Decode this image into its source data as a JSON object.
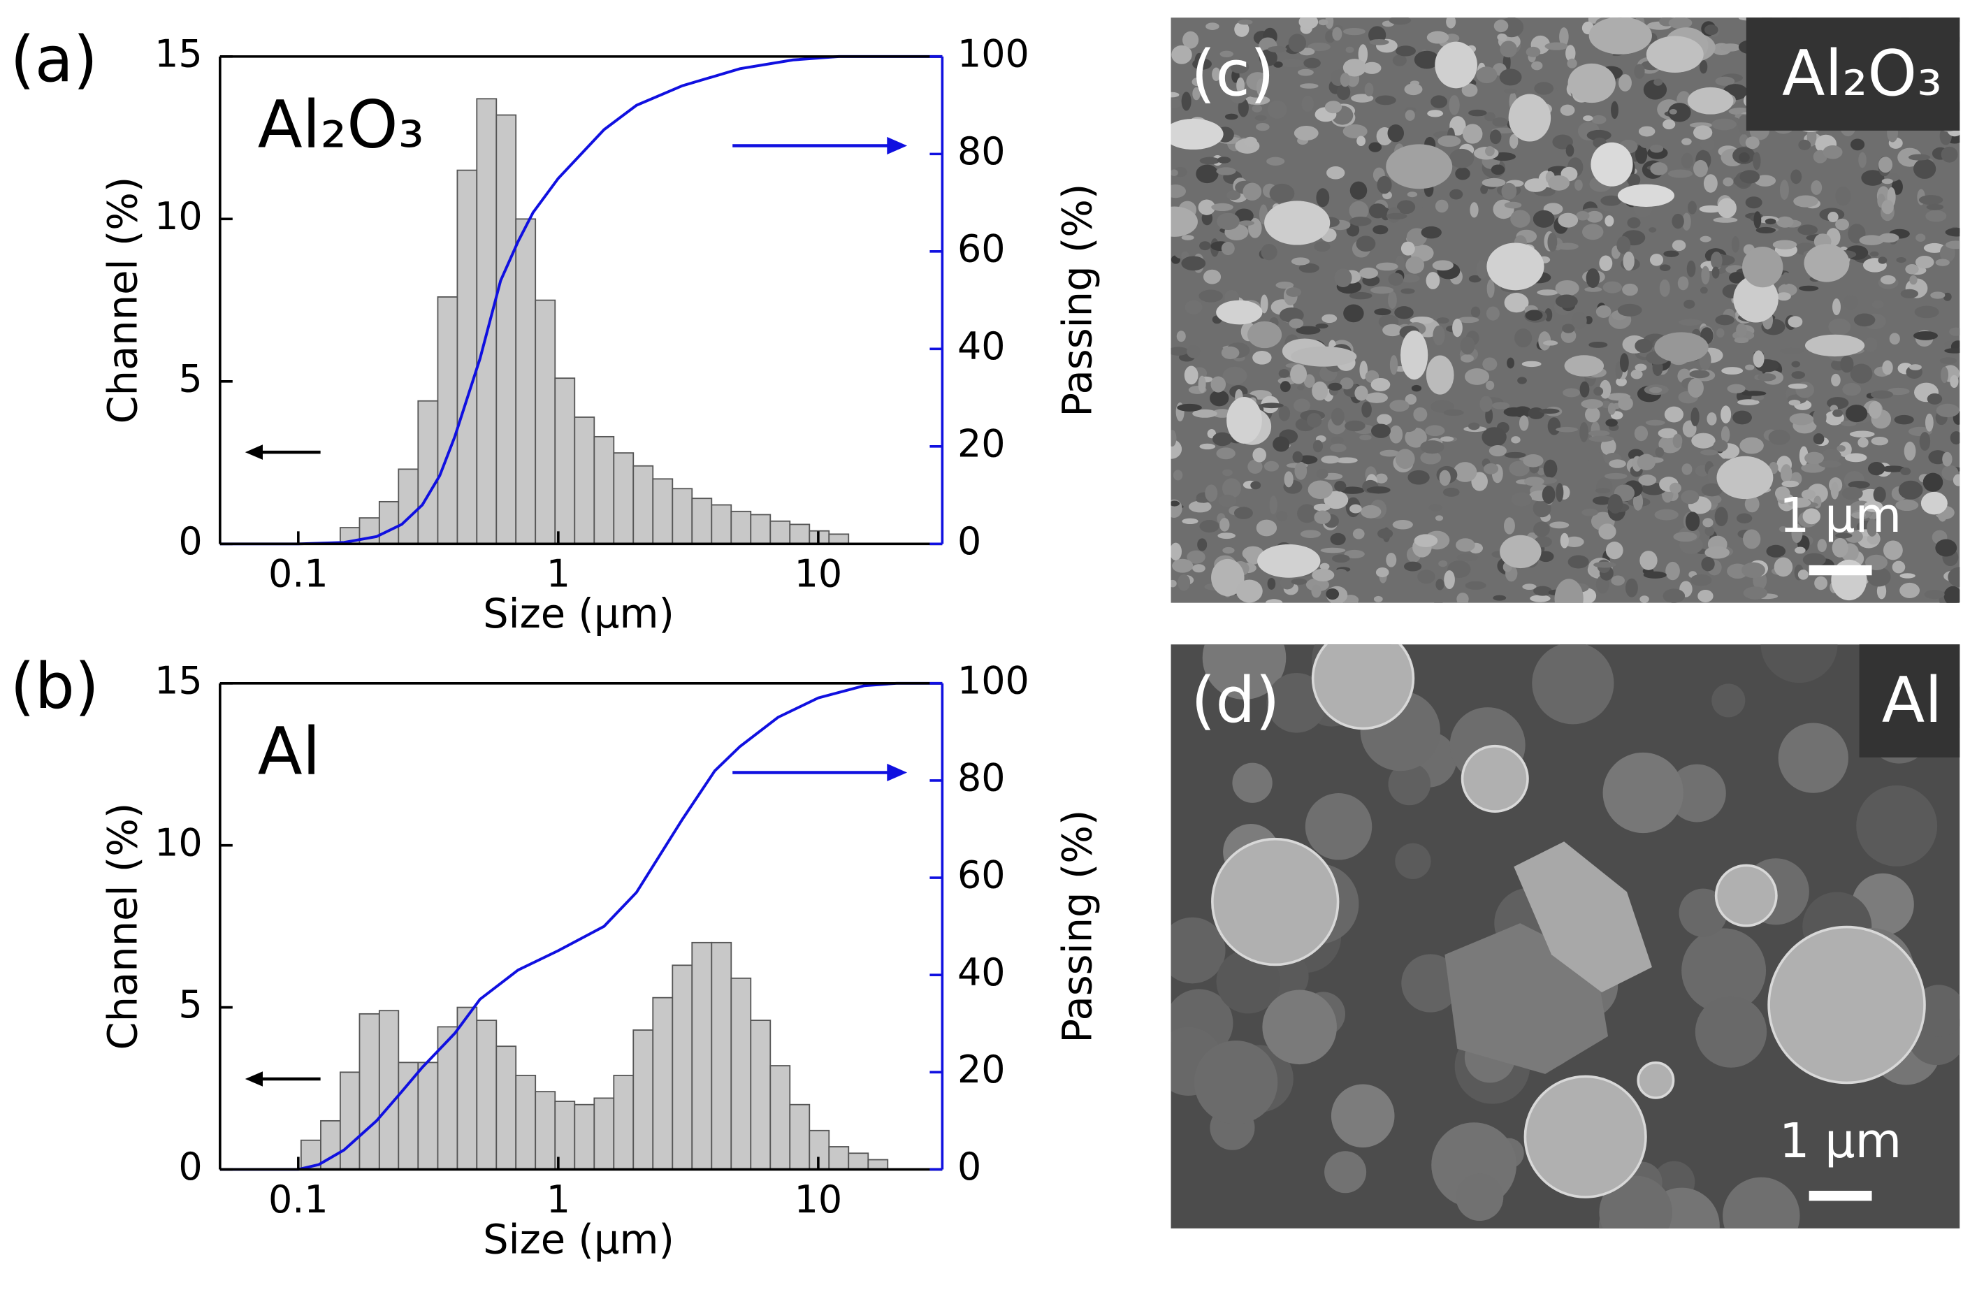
{
  "chart_data": [
    {
      "type": "histogram",
      "panel_label": "(a)",
      "annotation": "Al₂O₃",
      "xlabel": "Size (μm)",
      "ylabel": "Channel (%)",
      "y2label": "Passing (%)",
      "log_x": true,
      "xlim": [
        0.05,
        30
      ],
      "xticks": [
        0.1,
        1,
        10
      ],
      "ylim": [
        0,
        15
      ],
      "yticks": [
        0,
        5,
        10,
        15
      ],
      "y2lim": [
        0,
        100
      ],
      "y2ticks": [
        0,
        20,
        40,
        60,
        80,
        100
      ],
      "color": "#c8c8c8",
      "bins": [
        0.145,
        0.172,
        0.205,
        0.243,
        0.289,
        0.344,
        0.409,
        0.486,
        0.578,
        0.687,
        0.817,
        0.972,
        1.156,
        1.375,
        1.635,
        1.944,
        2.312,
        2.75,
        3.27,
        3.889,
        4.625,
        5.5,
        6.541,
        7.778,
        9.25,
        11,
        13.08
      ],
      "values": [
        0.5,
        0.8,
        1.3,
        2.3,
        4.4,
        7.6,
        11.5,
        13.7,
        13.2,
        10.0,
        7.5,
        5.1,
        3.9,
        3.3,
        2.8,
        2.4,
        2.0,
        1.7,
        1.4,
        1.2,
        1.0,
        0.9,
        0.7,
        0.6,
        0.4,
        0.3
      ],
      "passing": {
        "color": "#1010e0",
        "axis": "y2",
        "x": [
          0.05,
          0.1,
          0.15,
          0.2,
          0.25,
          0.3,
          0.35,
          0.4,
          0.5,
          0.6,
          0.7,
          0.8,
          1,
          1.5,
          2,
          3,
          5,
          8,
          12,
          30
        ],
        "values": [
          0,
          0,
          0.3,
          1.5,
          4,
          8,
          14,
          22,
          38,
          54,
          62,
          68,
          75,
          85,
          90,
          94,
          97.5,
          99.3,
          100,
          100
        ]
      }
    },
    {
      "type": "histogram",
      "panel_label": "(b)",
      "annotation": "Al",
      "xlabel": "Size (μm)",
      "ylabel": "Channel (%)",
      "y2label": "Passing (%)",
      "log_x": true,
      "xlim": [
        0.05,
        30
      ],
      "xticks": [
        0.1,
        1,
        10
      ],
      "ylim": [
        0,
        15
      ],
      "yticks": [
        0,
        5,
        10,
        15
      ],
      "y2lim": [
        0,
        100
      ],
      "y2ticks": [
        0,
        20,
        40,
        60,
        80,
        100
      ],
      "color": "#c8c8c8",
      "bins": [
        0.1025,
        0.122,
        0.145,
        0.172,
        0.205,
        0.243,
        0.289,
        0.344,
        0.409,
        0.486,
        0.578,
        0.687,
        0.817,
        0.972,
        1.156,
        1.375,
        1.635,
        1.944,
        2.312,
        2.75,
        3.27,
        3.889,
        4.625,
        5.5,
        6.541,
        7.778,
        9.25,
        11,
        13.08,
        15.56,
        18.5
      ],
      "values": [
        0.9,
        1.5,
        3.0,
        4.8,
        4.9,
        3.3,
        3.3,
        4.4,
        5.0,
        4.6,
        3.8,
        2.9,
        2.4,
        2.1,
        2.0,
        2.2,
        2.9,
        4.3,
        5.3,
        6.3,
        7.0,
        7.0,
        5.9,
        4.6,
        3.2,
        2.0,
        1.2,
        0.7,
        0.5,
        0.3
      ],
      "passing": {
        "color": "#1010e0",
        "axis": "y2",
        "x": [
          0.05,
          0.1,
          0.12,
          0.15,
          0.2,
          0.25,
          0.3,
          0.4,
          0.5,
          0.7,
          1,
          1.5,
          2,
          3,
          4,
          5,
          7,
          10,
          15,
          20,
          30
        ],
        "values": [
          0,
          0,
          1,
          4,
          10,
          16,
          21,
          28,
          35,
          41,
          45,
          50,
          57,
          72,
          82,
          87,
          93,
          97,
          99.5,
          100,
          100
        ]
      }
    }
  ],
  "images": [
    {
      "panel_label": "(c)",
      "caption": "Al₂O₃",
      "scale_bar": "1 μm"
    },
    {
      "panel_label": "(d)",
      "caption": "Al",
      "scale_bar": "1 μm"
    }
  ]
}
